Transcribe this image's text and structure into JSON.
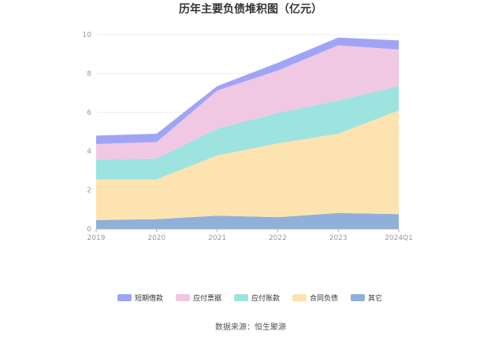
{
  "chart_data": {
    "type": "area",
    "stacked": true,
    "title": "历年主要负债堆积图（亿元）",
    "xlabel": "",
    "ylabel": "",
    "categories": [
      "2019",
      "2020",
      "2021",
      "2022",
      "2023",
      "2024Q1"
    ],
    "ylim": [
      0,
      10
    ],
    "yticks": [
      0,
      2,
      4,
      6,
      8,
      10
    ],
    "grid": true,
    "legend_position": "bottom",
    "series": [
      {
        "name": "其它",
        "color": "#8fb0d8",
        "values": [
          0.45,
          0.5,
          0.68,
          0.6,
          0.82,
          0.76
        ]
      },
      {
        "name": "合同负债",
        "color": "#fde3b0",
        "values": [
          2.1,
          2.05,
          3.1,
          3.8,
          4.08,
          5.34
        ]
      },
      {
        "name": "应付账款",
        "color": "#9de3e0",
        "values": [
          1.02,
          1.07,
          1.37,
          1.56,
          1.7,
          1.26
        ]
      },
      {
        "name": "应付票据",
        "color": "#f0c8e3",
        "values": [
          0.8,
          0.85,
          1.97,
          2.19,
          2.85,
          1.87
        ]
      },
      {
        "name": "短期借款",
        "color": "#a0a4f5",
        "values": [
          0.43,
          0.43,
          0.23,
          0.4,
          0.4,
          0.47
        ]
      }
    ],
    "legend_order": [
      "短期借款",
      "应付票据",
      "应付账款",
      "合同负债",
      "其它"
    ]
  },
  "source_text": "数据来源：恒生聚源"
}
